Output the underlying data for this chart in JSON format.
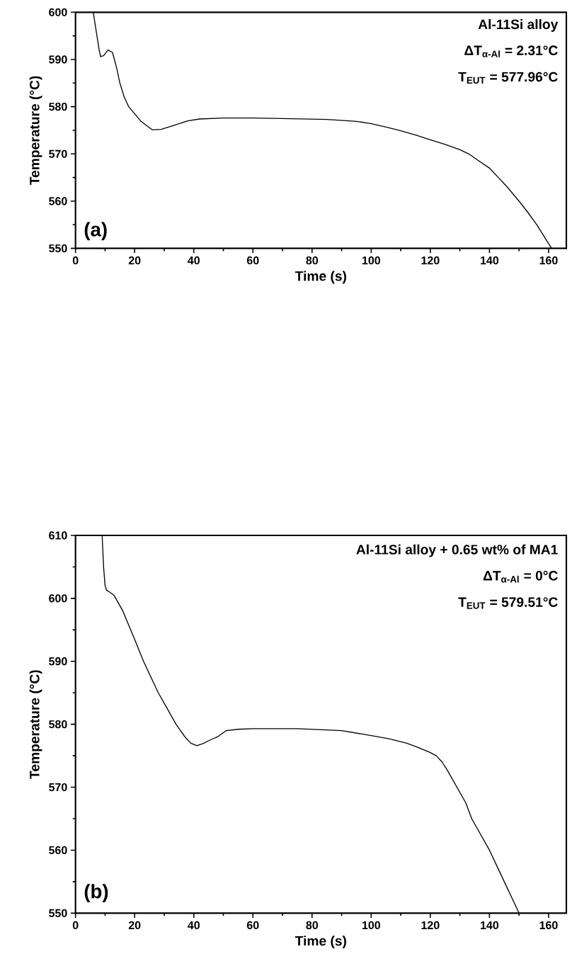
{
  "chart_data": [
    {
      "type": "line",
      "xlabel": "Time (s)",
      "ylabel": "Temperature (°C)",
      "x": [
        6,
        7,
        8,
        8.5,
        9.5,
        11,
        12.5,
        14,
        15,
        16.5,
        18,
        20,
        22,
        24,
        26,
        29,
        33,
        38,
        42,
        50,
        60,
        70,
        85,
        95,
        100,
        105,
        110,
        115,
        120,
        125,
        130,
        133,
        136,
        140,
        143,
        146,
        150,
        153,
        156,
        159,
        161
      ],
      "series": [
        {
          "color": "#000000",
          "values": [
            600,
            596,
            592,
            590.6,
            590.8,
            592,
            591.5,
            588,
            585,
            582,
            580,
            578.5,
            577,
            576,
            575.1,
            575.2,
            576,
            577,
            577.4,
            577.6,
            577.6,
            577.5,
            577.3,
            576.9,
            576.4,
            575.7,
            574.9,
            574,
            573,
            572,
            570.9,
            570,
            568.7,
            567,
            565,
            563,
            560,
            557.6,
            555,
            552,
            550
          ]
        }
      ],
      "xlim": [
        0,
        166
      ],
      "ylim": [
        550,
        600
      ],
      "xticks": [
        0,
        20,
        40,
        60,
        80,
        100,
        120,
        140,
        160
      ],
      "yticks": [
        550,
        560,
        570,
        580,
        590,
        600
      ],
      "marker": "none",
      "line_style": "solid",
      "annotations": [
        "Al-11Si alloy",
        "ΔT$_{α-Al}$ = 2.31°C",
        "T$_{EUT}$ = 577.96°C",
        "(a)"
      ]
    },
    {
      "type": "line",
      "xlabel": "Time (s)",
      "ylabel": "Temperature (°C)",
      "x": [
        9,
        9.5,
        10,
        10.5,
        11.5,
        13,
        16,
        20,
        23,
        26,
        28,
        31,
        34,
        37,
        39,
        41,
        43,
        46,
        48,
        51,
        55,
        60,
        75,
        90,
        100,
        106,
        112,
        116,
        120,
        122,
        124,
        126,
        129,
        132,
        134,
        137,
        140,
        143,
        145,
        148,
        150
      ],
      "series": [
        {
          "color": "#000000",
          "values": [
            610,
            605,
            602,
            601.3,
            601,
            600.5,
            598,
            593.5,
            590,
            587,
            585,
            582.5,
            580,
            578,
            577,
            576.6,
            576.9,
            577.6,
            578,
            579,
            579.2,
            579.3,
            579.3,
            579,
            578.2,
            577.7,
            577,
            576.3,
            575.5,
            575,
            574,
            572.5,
            570,
            567.5,
            565,
            562.5,
            560,
            557,
            555,
            552,
            550
          ]
        }
      ],
      "xlim": [
        0,
        166
      ],
      "ylim": [
        550,
        610
      ],
      "xticks": [
        0,
        20,
        40,
        60,
        80,
        100,
        120,
        140,
        160
      ],
      "yticks": [
        550,
        560,
        570,
        580,
        590,
        600,
        610
      ],
      "marker": "none",
      "line_style": "solid",
      "annotations": [
        "Al-11Si alloy + 0.65 wt% of MA1",
        "ΔT$_{α-Al}$ = 0°C",
        "T$_{EUT}$ = 579.51°C",
        "(b)"
      ]
    }
  ]
}
